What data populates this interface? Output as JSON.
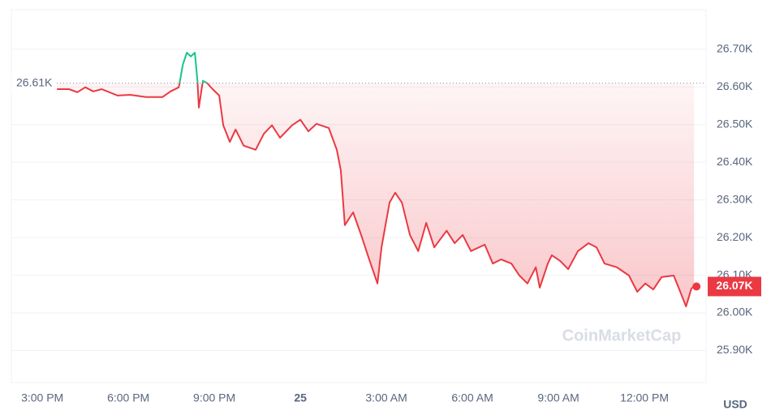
{
  "chart_data": {
    "type": "line",
    "x": [
      15.51,
      15.93,
      16.22,
      16.5,
      16.78,
      17.07,
      17.63,
      18.06,
      18.62,
      19.19,
      19.47,
      19.76,
      19.9,
      20.04,
      20.18,
      20.32,
      20.41,
      20.46,
      20.6,
      20.75,
      20.94,
      21.17,
      21.31,
      21.54,
      21.74,
      22.02,
      22.44,
      22.73,
      23.01,
      23.29,
      23.71,
      24.0,
      24.28,
      24.56,
      24.99,
      25.27,
      25.41,
      25.55,
      25.84,
      26.12,
      26.4,
      26.69,
      26.83,
      27.11,
      27.31,
      27.54,
      27.82,
      28.11,
      28.39,
      28.67,
      29.1,
      29.38,
      29.66,
      29.95,
      30.43,
      30.71,
      31.0,
      31.36,
      31.64,
      31.92,
      32.21,
      32.35,
      32.63,
      32.77,
      33.06,
      33.34,
      33.68,
      34.05,
      34.33,
      34.61,
      35.04,
      35.46,
      35.75,
      36.03,
      36.31,
      36.6,
      37.02,
      37.25,
      37.45,
      37.64,
      37.73
    ],
    "values": [
      26594,
      26594,
      26586,
      26599,
      26588,
      26594,
      26577,
      26579,
      26573,
      26573,
      26588,
      26599,
      26659,
      26691,
      26681,
      26691,
      26616,
      26545,
      26616,
      26610,
      26594,
      26577,
      26498,
      26454,
      26487,
      26444,
      26433,
      26476,
      26498,
      26465,
      26498,
      26513,
      26482,
      26502,
      26491,
      26433,
      26379,
      26233,
      26267,
      26207,
      26142,
      26078,
      26174,
      26293,
      26319,
      26293,
      26207,
      26164,
      26239,
      26174,
      26218,
      26185,
      26207,
      26164,
      26181,
      26131,
      26142,
      26131,
      26099,
      26078,
      26121,
      26067,
      26131,
      26153,
      26138,
      26116,
      26164,
      26185,
      26174,
      26131,
      26121,
      26099,
      26056,
      26078,
      26062,
      26095,
      26099,
      26056,
      26017,
      26065,
      26070
    ],
    "colors": {
      "up": "#16c784",
      "down": "#ea3943"
    },
    "reference": {
      "value": 26610,
      "label": "26.61K"
    },
    "current": {
      "value": 26070,
      "label": "26.07K"
    },
    "xlim": [
      13.92,
      38.15
    ],
    "ylim": [
      25815,
      26805
    ],
    "xticks": [
      {
        "value": 15,
        "label": "3:00 PM"
      },
      {
        "value": 18,
        "label": "6:00 PM"
      },
      {
        "value": 21,
        "label": "9:00 PM"
      },
      {
        "value": 24,
        "label": "25"
      },
      {
        "value": 27,
        "label": "3:00 AM"
      },
      {
        "value": 30,
        "label": "6:00 AM"
      },
      {
        "value": 33,
        "label": "9:00 AM"
      },
      {
        "value": 36,
        "label": "12:00 PM"
      }
    ],
    "yticks": [
      {
        "value": 25900,
        "label": "25.90K"
      },
      {
        "value": 26000,
        "label": "26.00K"
      },
      {
        "value": 26100,
        "label": "26.10K"
      },
      {
        "value": 26200,
        "label": "26.20K"
      },
      {
        "value": 26300,
        "label": "26.30K"
      },
      {
        "value": 26400,
        "label": "26.40K"
      },
      {
        "value": 26500,
        "label": "26.50K"
      },
      {
        "value": 26600,
        "label": "26.60K"
      },
      {
        "value": 26700,
        "label": "26.70K"
      }
    ],
    "grid": true,
    "currency": "USD",
    "watermark": "CoinMarketCap"
  }
}
